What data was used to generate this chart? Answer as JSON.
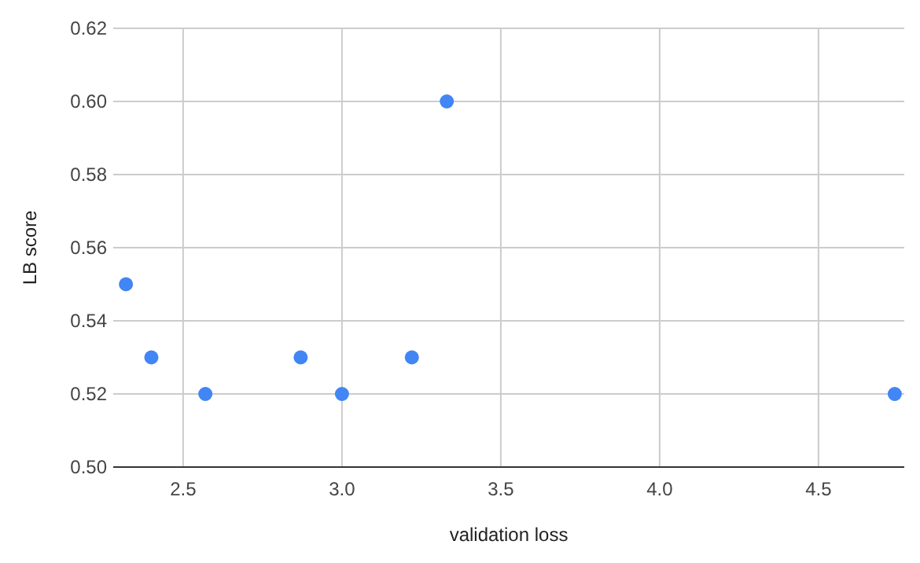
{
  "chart_data": {
    "type": "scatter",
    "xlabel": "validation loss",
    "ylabel": "LB score",
    "x": [
      2.32,
      2.4,
      2.57,
      2.87,
      3.0,
      3.22,
      3.33,
      4.74
    ],
    "values": [
      0.55,
      0.53,
      0.52,
      0.53,
      0.52,
      0.53,
      0.6,
      0.52
    ],
    "color": "#4285f4",
    "marker": "circle",
    "grid": true,
    "xlim": [
      2.28,
      4.77
    ],
    "xticks": [
      2.5,
      {
        "value": 3,
        "label": "3.0"
      },
      3.5,
      {
        "value": 4,
        "label": "4.0"
      },
      4.5
    ],
    "ylim": [
      0.5,
      0.62
    ],
    "yticks": [
      {
        "value": 0.5,
        "label": "0.50"
      },
      0.52,
      0.54,
      0.56,
      0.58,
      {
        "value": 0.6,
        "label": "0.60"
      },
      0.62
    ]
  }
}
